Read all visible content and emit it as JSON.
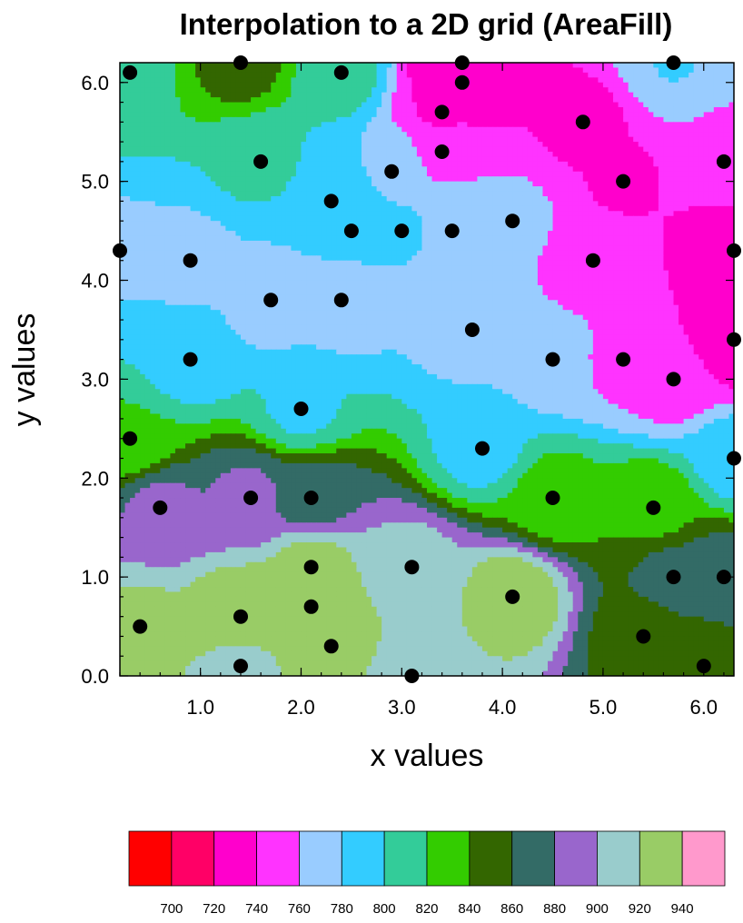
{
  "chart_data": {
    "type": "heatmap",
    "subtype": "filled-contour",
    "title": "Interpolation to a 2D grid (AreaFill)",
    "xlabel": "x values",
    "ylabel": "y values",
    "xlim": [
      0.2,
      6.3
    ],
    "ylim": [
      0.0,
      6.2
    ],
    "x_ticks": [
      1.0,
      2.0,
      3.0,
      4.0,
      5.0,
      6.0
    ],
    "x_tick_labels": [
      "1.0",
      "2.0",
      "3.0",
      "4.0",
      "5.0",
      "6.0"
    ],
    "y_ticks": [
      0.0,
      1.0,
      2.0,
      3.0,
      4.0,
      5.0,
      6.0
    ],
    "y_tick_labels": [
      "0.0",
      "1.0",
      "2.0",
      "3.0",
      "4.0",
      "5.0",
      "6.0"
    ],
    "grid": false,
    "legend": "colorbar-bottom",
    "contour_levels": [
      700,
      720,
      740,
      760,
      780,
      800,
      820,
      840,
      860,
      880,
      900,
      920,
      940
    ],
    "colorbar_labels": [
      "700",
      "720",
      "740",
      "760",
      "780",
      "800",
      "820",
      "840",
      "860",
      "880",
      "900",
      "920",
      "940"
    ],
    "colors": [
      "#ff0000",
      "#ff0066",
      "#ff00cc",
      "#ff33ff",
      "#99ccff",
      "#33ccff",
      "#33cc99",
      "#33cc00",
      "#336600",
      "#336b66",
      "#9966cc",
      "#99cccc",
      "#99cc66",
      "#ff99cc"
    ],
    "points": [
      [
        0.3,
        6.1
      ],
      [
        1.4,
        6.2
      ],
      [
        2.4,
        6.1
      ],
      [
        3.6,
        6.2
      ],
      [
        3.6,
        6.0
      ],
      [
        3.4,
        5.7
      ],
      [
        4.8,
        5.6
      ],
      [
        5.7,
        6.2
      ],
      [
        1.6,
        5.2
      ],
      [
        2.9,
        5.1
      ],
      [
        3.4,
        5.3
      ],
      [
        5.2,
        5.0
      ],
      [
        6.2,
        5.2
      ],
      [
        2.3,
        4.8
      ],
      [
        2.5,
        4.5
      ],
      [
        3.0,
        4.5
      ],
      [
        3.5,
        4.5
      ],
      [
        4.1,
        4.6
      ],
      [
        0.2,
        4.3
      ],
      [
        0.9,
        4.2
      ],
      [
        4.9,
        4.2
      ],
      [
        6.3,
        4.3
      ],
      [
        1.7,
        3.8
      ],
      [
        2.4,
        3.8
      ],
      [
        3.7,
        3.5
      ],
      [
        6.3,
        3.4
      ],
      [
        0.9,
        3.2
      ],
      [
        4.5,
        3.2
      ],
      [
        5.2,
        3.2
      ],
      [
        5.7,
        3.0
      ],
      [
        2.0,
        2.7
      ],
      [
        0.3,
        2.4
      ],
      [
        3.8,
        2.3
      ],
      [
        6.3,
        2.2
      ],
      [
        1.5,
        1.8
      ],
      [
        2.1,
        1.8
      ],
      [
        4.5,
        1.8
      ],
      [
        0.6,
        1.7
      ],
      [
        5.5,
        1.7
      ],
      [
        2.1,
        1.1
      ],
      [
        3.1,
        1.1
      ],
      [
        5.7,
        1.0
      ],
      [
        6.2,
        1.0
      ],
      [
        4.1,
        0.8
      ],
      [
        2.1,
        0.7
      ],
      [
        1.4,
        0.6
      ],
      [
        0.4,
        0.5
      ],
      [
        5.4,
        0.4
      ],
      [
        2.3,
        0.3
      ],
      [
        1.4,
        0.1
      ],
      [
        6.0,
        0.1
      ],
      [
        3.1,
        0.0
      ]
    ]
  }
}
